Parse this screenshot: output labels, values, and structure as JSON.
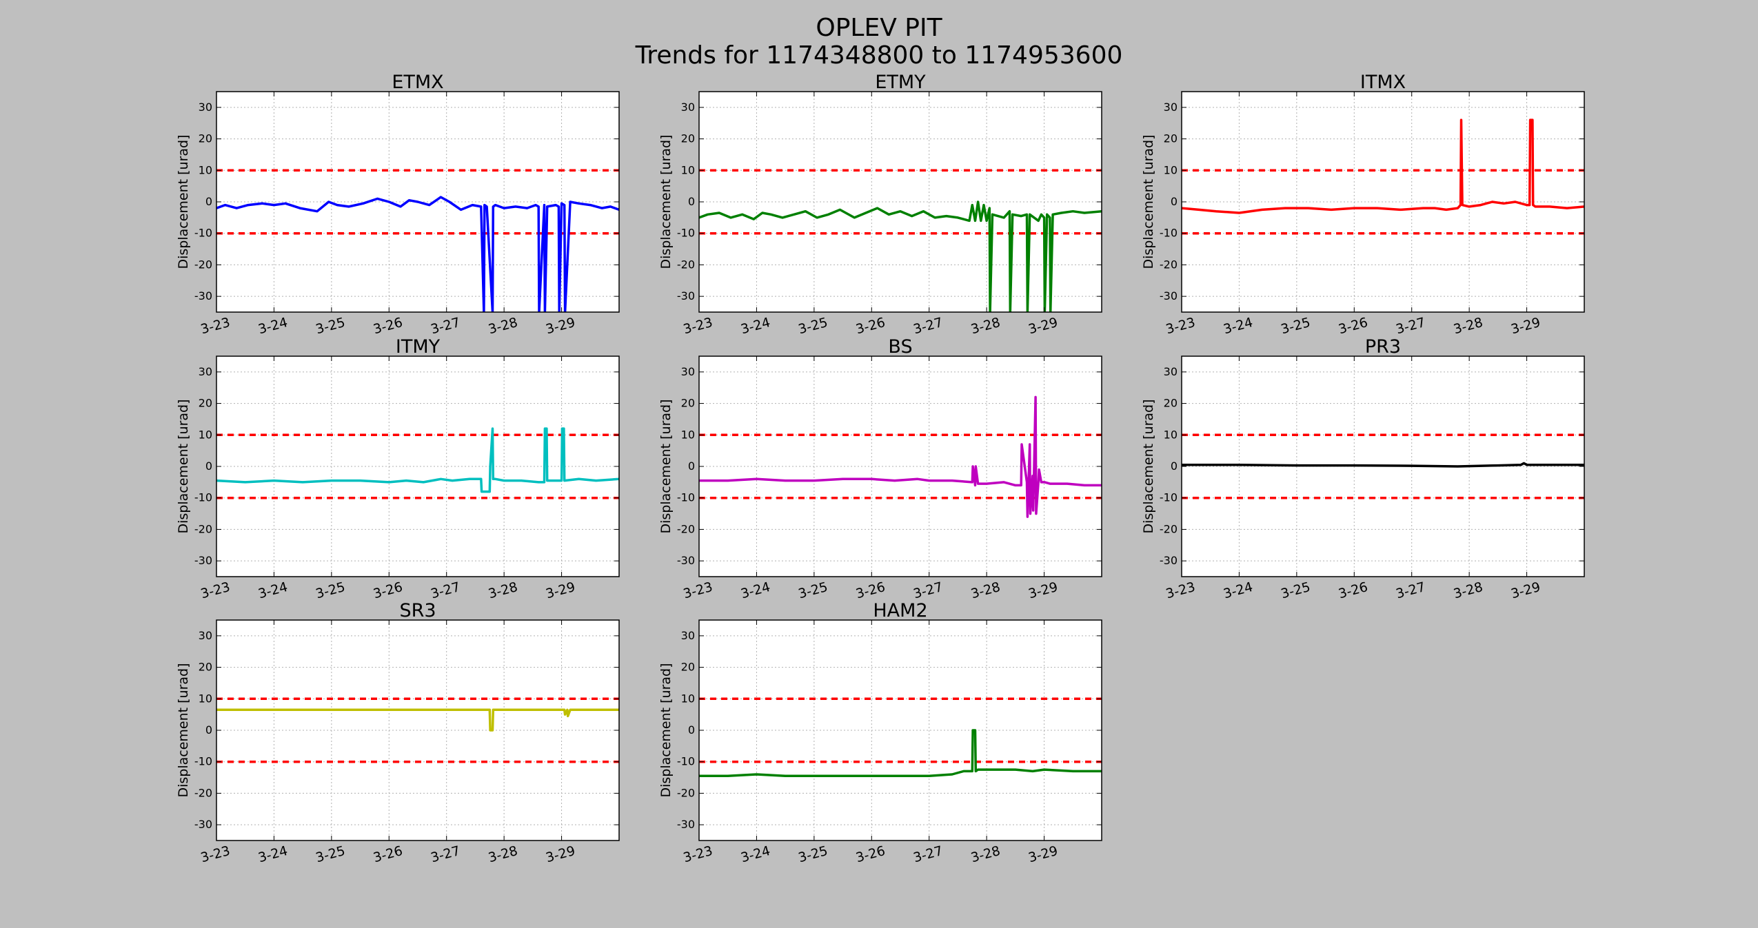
{
  "figure": {
    "title_line1": "OPLEV PIT",
    "title_line2": "Trends for 1174348800 to 1174953600"
  },
  "chart_data": [
    {
      "type": "line",
      "title": "ETMX",
      "color": "#0000ff",
      "xlabel": "",
      "ylabel": "Displacement [urad]",
      "xlim": [
        0,
        7
      ],
      "ylim": [
        -35,
        35
      ],
      "x_ticks": [
        "3-23",
        "3-24",
        "3-25",
        "3-26",
        "3-27",
        "3-28",
        "3-29"
      ],
      "y_ticks": [
        30,
        20,
        10,
        0,
        -10,
        -20,
        -30
      ],
      "grid": true,
      "threshold_lines": {
        "values": [
          10,
          -10
        ],
        "color": "#ff0000",
        "style": "dashed"
      },
      "series": [
        {
          "x": [
            0,
            0.15,
            0.35,
            0.55,
            0.8,
            1.0,
            1.2,
            1.45,
            1.75,
            1.95,
            2.1,
            2.3,
            2.55,
            2.8,
            3.0,
            3.2,
            3.35,
            3.5,
            3.7,
            3.9,
            4.05,
            4.25,
            4.45,
            4.6,
            4.65,
            4.66,
            4.7,
            4.8,
            4.81,
            4.85,
            5.0,
            5.2,
            5.4,
            5.55,
            5.6,
            5.61,
            5.7,
            5.71,
            5.75,
            5.9,
            5.95,
            5.96,
            6.0,
            6.05,
            6.06,
            6.15,
            6.3,
            6.5,
            6.7,
            6.85,
            7.0
          ],
          "y": [
            -2,
            -1,
            -2,
            -1,
            -0.5,
            -1,
            -0.5,
            -2,
            -3,
            0,
            -1,
            -1.5,
            -0.5,
            1,
            0,
            -1.5,
            0.5,
            0,
            -1,
            1.5,
            0,
            -2.5,
            -1,
            -1.5,
            -35,
            -1,
            -1.5,
            -35,
            -1.5,
            -1,
            -2,
            -1.5,
            -2,
            -1,
            -1.5,
            -35,
            -1,
            -35,
            -1.5,
            -1,
            -1.5,
            -35,
            -0.5,
            -1,
            -35,
            0,
            -0.5,
            -1,
            -2,
            -1.5,
            -2.5
          ]
        }
      ]
    },
    {
      "type": "line",
      "title": "ETMY",
      "color": "#008000",
      "xlabel": "",
      "ylabel": "Displacement [urad]",
      "xlim": [
        0,
        7
      ],
      "ylim": [
        -35,
        35
      ],
      "x_ticks": [
        "3-23",
        "3-24",
        "3-25",
        "3-26",
        "3-27",
        "3-28",
        "3-29"
      ],
      "y_ticks": [
        30,
        20,
        10,
        0,
        -10,
        -20,
        -30
      ],
      "grid": true,
      "threshold_lines": {
        "values": [
          10,
          -10
        ],
        "color": "#ff0000",
        "style": "dashed"
      },
      "series": [
        {
          "x": [
            0,
            0.15,
            0.35,
            0.55,
            0.75,
            0.95,
            1.1,
            1.25,
            1.45,
            1.65,
            1.85,
            2.05,
            2.25,
            2.45,
            2.7,
            2.9,
            3.1,
            3.3,
            3.5,
            3.7,
            3.9,
            4.1,
            4.3,
            4.5,
            4.7,
            4.75,
            4.8,
            4.85,
            4.9,
            4.95,
            5.0,
            5.05,
            5.06,
            5.1,
            5.3,
            5.4,
            5.41,
            5.45,
            5.6,
            5.7,
            5.71,
            5.75,
            5.9,
            5.95,
            6.0,
            6.01,
            6.05,
            6.1,
            6.11,
            6.15,
            6.3,
            6.5,
            6.7,
            7.0
          ],
          "y": [
            -5,
            -4,
            -3.5,
            -5,
            -4,
            -5.5,
            -3.5,
            -4,
            -5,
            -4,
            -3,
            -5,
            -4,
            -2.5,
            -5,
            -3.5,
            -2,
            -4,
            -3,
            -4.5,
            -3,
            -5,
            -4.5,
            -5,
            -6,
            -1,
            -6,
            0,
            -6,
            -1,
            -6,
            -2,
            -35,
            -4,
            -5,
            -3,
            -35,
            -4,
            -4.5,
            -4,
            -35,
            -4,
            -6,
            -4,
            -5,
            -35,
            -4,
            -5,
            -35,
            -4,
            -3.5,
            -3,
            -3.5,
            -3
          ]
        }
      ]
    },
    {
      "type": "line",
      "title": "ITMX",
      "color": "#ff0000",
      "xlabel": "",
      "ylabel": "Displacement [urad]",
      "xlim": [
        0,
        7
      ],
      "ylim": [
        -35,
        35
      ],
      "x_ticks": [
        "3-23",
        "3-24",
        "3-25",
        "3-26",
        "3-27",
        "3-28",
        "3-29"
      ],
      "y_ticks": [
        30,
        20,
        10,
        0,
        -10,
        -20,
        -30
      ],
      "grid": true,
      "threshold_lines": {
        "values": [
          10,
          -10
        ],
        "color": "#ff0000",
        "style": "dashed"
      },
      "series": [
        {
          "x": [
            0,
            0.3,
            0.6,
            1.0,
            1.4,
            1.8,
            2.2,
            2.6,
            3.0,
            3.4,
            3.8,
            4.2,
            4.4,
            4.6,
            4.8,
            4.85,
            4.86,
            4.88,
            5.0,
            5.2,
            5.4,
            5.6,
            5.8,
            6.0,
            6.05,
            6.06,
            6.1,
            6.11,
            6.15,
            6.4,
            6.7,
            7.0
          ],
          "y": [
            -2,
            -2.5,
            -3,
            -3.5,
            -2.5,
            -2,
            -2,
            -2.5,
            -2,
            -2,
            -2.5,
            -2,
            -2,
            -2.5,
            -2,
            -1,
            26,
            -1,
            -1.5,
            -1,
            0,
            -0.5,
            0,
            -1,
            -1,
            26,
            26,
            -1,
            -1.5,
            -1.5,
            -2,
            -1.5
          ]
        }
      ]
    },
    {
      "type": "line",
      "title": "ITMY",
      "color": "#00bfbf",
      "xlabel": "",
      "ylabel": "Displacement [urad]",
      "xlim": [
        0,
        7
      ],
      "ylim": [
        -35,
        35
      ],
      "x_ticks": [
        "3-23",
        "3-24",
        "3-25",
        "3-26",
        "3-27",
        "3-28",
        "3-29"
      ],
      "y_ticks": [
        30,
        20,
        10,
        0,
        -10,
        -20,
        -30
      ],
      "grid": true,
      "threshold_lines": {
        "values": [
          10,
          -10
        ],
        "color": "#ff0000",
        "style": "dashed"
      },
      "series": [
        {
          "x": [
            0,
            0.5,
            1.0,
            1.5,
            2.0,
            2.5,
            3.0,
            3.3,
            3.6,
            3.9,
            4.1,
            4.4,
            4.6,
            4.61,
            4.75,
            4.76,
            4.8,
            4.81,
            4.85,
            5.0,
            5.3,
            5.6,
            5.7,
            5.71,
            5.74,
            5.75,
            6.0,
            6.01,
            6.04,
            6.05,
            6.3,
            6.6,
            7.0
          ],
          "y": [
            -4.5,
            -5,
            -4.5,
            -5,
            -4.5,
            -4.5,
            -5,
            -4.5,
            -5,
            -4,
            -4.5,
            -4,
            -4,
            -8,
            -8,
            0,
            12,
            -4,
            -4,
            -4.5,
            -4.5,
            -5,
            -5,
            12,
            12,
            -4.5,
            -4.5,
            12,
            12,
            -4.5,
            -4,
            -4.5,
            -4
          ]
        }
      ]
    },
    {
      "type": "line",
      "title": "BS",
      "color": "#bf00bf",
      "xlabel": "",
      "ylabel": "Displacement [urad]",
      "xlim": [
        0,
        7
      ],
      "ylim": [
        -35,
        35
      ],
      "x_ticks": [
        "3-23",
        "3-24",
        "3-25",
        "3-26",
        "3-27",
        "3-28",
        "3-29"
      ],
      "y_ticks": [
        30,
        20,
        10,
        0,
        -10,
        -20,
        -30
      ],
      "grid": true,
      "threshold_lines": {
        "values": [
          10,
          -10
        ],
        "color": "#ff0000",
        "style": "dashed"
      },
      "series": [
        {
          "x": [
            0,
            0.5,
            1.0,
            1.5,
            2.0,
            2.5,
            3.0,
            3.4,
            3.8,
            4.0,
            4.4,
            4.75,
            4.76,
            4.8,
            4.81,
            4.85,
            5.0,
            5.3,
            5.5,
            5.6,
            5.61,
            5.7,
            5.71,
            5.75,
            5.76,
            5.8,
            5.81,
            5.85,
            5.86,
            5.9,
            5.91,
            5.95,
            5.96,
            6.0,
            6.01,
            6.1,
            6.4,
            6.7,
            7.0
          ],
          "y": [
            -4.5,
            -4.5,
            -4,
            -4.5,
            -4.5,
            -4,
            -4,
            -4.5,
            -4,
            -4.5,
            -4.5,
            -5,
            0,
            -6,
            0,
            -5.5,
            -5.5,
            -5,
            -6,
            -6,
            7,
            -5,
            -16,
            7,
            -15,
            -3,
            -14,
            22,
            -15,
            -5,
            -1,
            -5,
            -5,
            -5,
            -5,
            -5.5,
            -5.5,
            -6,
            -6
          ]
        }
      ]
    },
    {
      "type": "line",
      "title": "PR3",
      "color": "#000000",
      "xlabel": "",
      "ylabel": "Displacement [urad]",
      "xlim": [
        0,
        7
      ],
      "ylim": [
        -35,
        35
      ],
      "x_ticks": [
        "3-23",
        "3-24",
        "3-25",
        "3-26",
        "3-27",
        "3-28",
        "3-29"
      ],
      "y_ticks": [
        30,
        20,
        10,
        0,
        -10,
        -20,
        -30
      ],
      "grid": true,
      "threshold_lines": {
        "values": [
          10,
          -10
        ],
        "color": "#ff0000",
        "style": "dashed"
      },
      "series": [
        {
          "x": [
            0,
            1.0,
            2.0,
            3.0,
            4.0,
            4.8,
            5.5,
            5.9,
            5.95,
            6.0,
            6.5,
            7.0
          ],
          "y": [
            0.5,
            0.5,
            0.3,
            0.3,
            0.2,
            0,
            0.3,
            0.5,
            1,
            0.5,
            0.5,
            0.5
          ]
        }
      ]
    },
    {
      "type": "line",
      "title": "SR3",
      "color": "#bfbf00",
      "xlabel": "",
      "ylabel": "Displacement [urad]",
      "xlim": [
        0,
        7
      ],
      "ylim": [
        -35,
        35
      ],
      "x_ticks": [
        "3-23",
        "3-24",
        "3-25",
        "3-26",
        "3-27",
        "3-28",
        "3-29"
      ],
      "y_ticks": [
        30,
        20,
        10,
        0,
        -10,
        -20,
        -30
      ],
      "grid": true,
      "threshold_lines": {
        "values": [
          10,
          -10
        ],
        "color": "#ff0000",
        "style": "dashed"
      },
      "series": [
        {
          "x": [
            0,
            1.0,
            2.0,
            3.0,
            4.0,
            4.75,
            4.76,
            4.8,
            4.81,
            4.85,
            5.5,
            6.05,
            6.06,
            6.1,
            6.11,
            6.15,
            6.5,
            7.0
          ],
          "y": [
            6.5,
            6.5,
            6.5,
            6.5,
            6.5,
            6.5,
            0,
            0,
            6.5,
            6.5,
            6.5,
            6.5,
            5,
            6.5,
            4.5,
            6.5,
            6.5,
            6.5
          ]
        }
      ]
    },
    {
      "type": "line",
      "title": "HAM2",
      "color": "#008000",
      "xlabel": "",
      "ylabel": "Displacement [urad]",
      "xlim": [
        0,
        7
      ],
      "ylim": [
        -35,
        35
      ],
      "x_ticks": [
        "3-23",
        "3-24",
        "3-25",
        "3-26",
        "3-27",
        "3-28",
        "3-29"
      ],
      "y_ticks": [
        30,
        20,
        10,
        0,
        -10,
        -20,
        -30
      ],
      "grid": true,
      "threshold_lines": {
        "values": [
          10,
          -10
        ],
        "color": "#ff0000",
        "style": "dashed"
      },
      "series": [
        {
          "x": [
            0,
            0.5,
            1.0,
            1.5,
            2.0,
            2.5,
            3.0,
            3.5,
            4.0,
            4.4,
            4.6,
            4.7,
            4.75,
            4.76,
            4.8,
            4.81,
            4.85,
            5.0,
            5.5,
            5.8,
            6.0,
            6.5,
            7.0
          ],
          "y": [
            -14.5,
            -14.5,
            -14,
            -14.5,
            -14.5,
            -14.5,
            -14.5,
            -14.5,
            -14.5,
            -14,
            -13,
            -13,
            -13,
            0,
            0,
            -13,
            -12.5,
            -12.5,
            -12.5,
            -13,
            -12.5,
            -13,
            -13
          ]
        }
      ]
    }
  ]
}
